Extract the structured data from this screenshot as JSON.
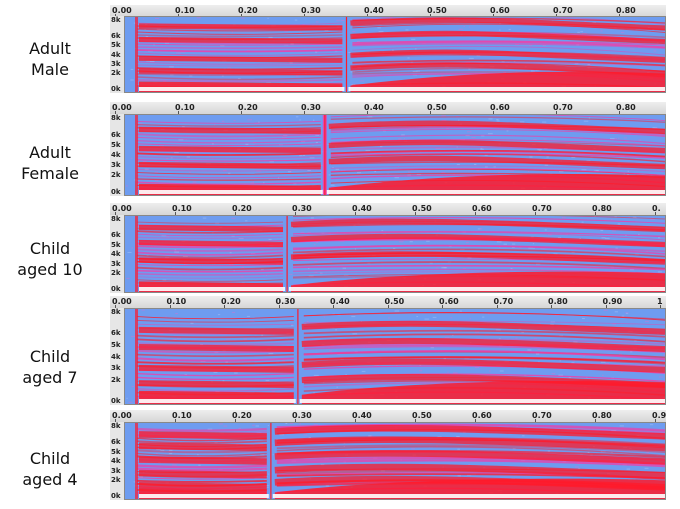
{
  "panels": [
    {
      "label_lines": [
        "Adult",
        "Male"
      ],
      "ticks": [
        "0.00",
        "0.10",
        "0.20",
        "0.30",
        "0.40",
        "0.50",
        "0.60",
        "0.70",
        "0.80"
      ],
      "freq_labels": [
        "8k",
        "6k",
        "5k",
        "4k",
        "3k",
        "2k",
        "0k"
      ]
    },
    {
      "label_lines": [
        "Adult",
        "Female"
      ],
      "ticks": [
        "0.00",
        "0.10",
        "0.20",
        "0.30",
        "0.40",
        "0.50",
        "0.60",
        "0.70",
        "0.80"
      ],
      "freq_labels": [
        "8k",
        "6k",
        "5k",
        "4k",
        "3k",
        "2k",
        "0k"
      ]
    },
    {
      "label_lines": [
        "Child",
        "aged 10"
      ],
      "ticks": [
        "0.00",
        "0.10",
        "0.20",
        "0.30",
        "0.40",
        "0.50",
        "0.60",
        "0.70",
        "0.80",
        "0."
      ],
      "freq_labels": [
        "8k",
        "6k",
        "5k",
        "4k",
        "3k",
        "2k",
        "0k"
      ]
    },
    {
      "label_lines": [
        "Child",
        "aged 7"
      ],
      "ticks": [
        "0.00",
        "0.10",
        "0.20",
        "0.30",
        "0.40",
        "0.50",
        "0.60",
        "0.70",
        "0.80",
        "0.90",
        "1"
      ],
      "freq_labels": [
        "8k",
        "6k",
        "5k",
        "4k",
        "3k",
        "2k",
        "0k"
      ]
    },
    {
      "label_lines": [
        "Child",
        "aged 4"
      ],
      "ticks": [
        "0.00",
        "0.10",
        "0.20",
        "0.30",
        "0.40",
        "0.50",
        "0.60",
        "0.70",
        "0.80",
        "0.9"
      ],
      "freq_labels": [
        "8k",
        "6k",
        "5k",
        "4k",
        "3k",
        "2k",
        "0k"
      ]
    }
  ],
  "colors": {
    "background_blue": "#6e9cf0",
    "mid_pink": "#ee3fa8",
    "hot_red": "#ff1a2a",
    "white": "#ffffff"
  }
}
